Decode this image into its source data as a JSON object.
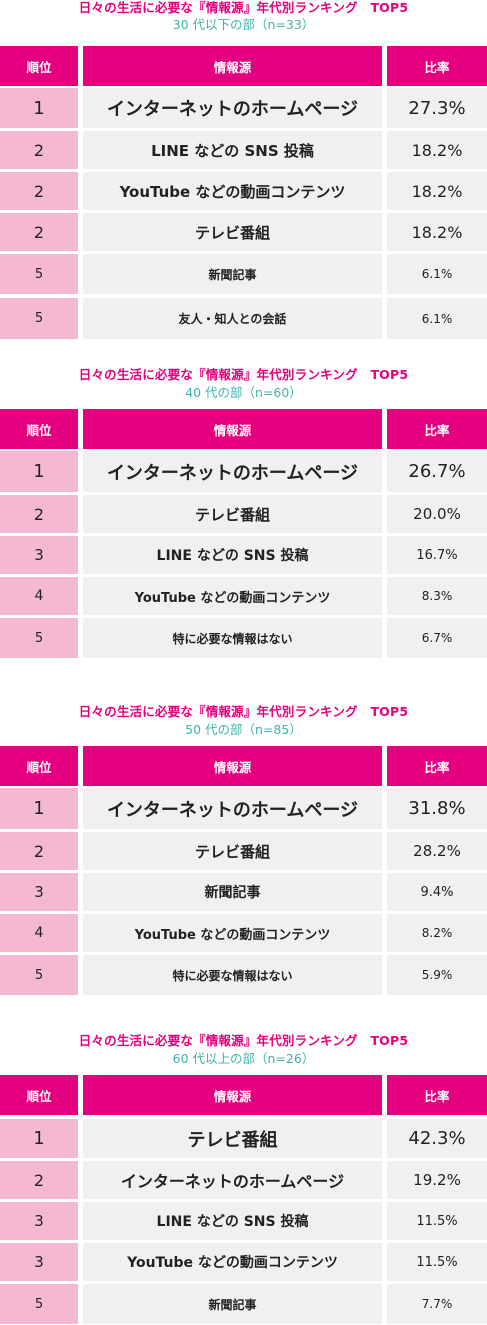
{
  "header_labels": {
    "rank": "順位",
    "source": "情報源",
    "rate": "比率"
  },
  "tables": [
    {
      "title": "日々の生活に必要な『情報源』年代別ランキング　TOP5",
      "subtitle": "30 代以下の部（n=33）",
      "rows": [
        {
          "rank": "1",
          "source": "インターネットのホームページ",
          "rate": "27.3%"
        },
        {
          "rank": "2",
          "source": "LINE などの SNS 投稿",
          "rate": "18.2%"
        },
        {
          "rank": "2",
          "source": "YouTube などの動画コンテンツ",
          "rate": "18.2%"
        },
        {
          "rank": "2",
          "source": "テレビ番組",
          "rate": "18.2%"
        },
        {
          "rank": "5",
          "source": "新聞記事",
          "rate": "6.1%"
        },
        {
          "rank": "5",
          "source": "友人・知人との会話",
          "rate": "6.1%"
        }
      ]
    },
    {
      "title": "日々の生活に必要な『情報源』年代別ランキング　TOP5",
      "subtitle": "40 代の部（n=60）",
      "rows": [
        {
          "rank": "1",
          "source": "インターネットのホームページ",
          "rate": "26.7%"
        },
        {
          "rank": "2",
          "source": "テレビ番組",
          "rate": "20.0%"
        },
        {
          "rank": "3",
          "source": "LINE などの SNS 投稿",
          "rate": "16.7%"
        },
        {
          "rank": "4",
          "source": "YouTube などの動画コンテンツ",
          "rate": "8.3%"
        },
        {
          "rank": "5",
          "source": "特に必要な情報はない",
          "rate": "6.7%"
        }
      ]
    },
    {
      "title": "日々の生活に必要な『情報源』年代別ランキング　TOP5",
      "subtitle": "50 代の部（n=85）",
      "rows": [
        {
          "rank": "1",
          "source": "インターネットのホームページ",
          "rate": "31.8%"
        },
        {
          "rank": "2",
          "source": "テレビ番組",
          "rate": "28.2%"
        },
        {
          "rank": "3",
          "source": "新聞記事",
          "rate": "9.4%"
        },
        {
          "rank": "4",
          "source": "YouTube などの動画コンテンツ",
          "rate": "8.2%"
        },
        {
          "rank": "5",
          "source": "特に必要な情報はない",
          "rate": "5.9%"
        }
      ]
    },
    {
      "title": "日々の生活に必要な『情報源』年代別ランキング　TOP5",
      "subtitle": "60 代以上の部（n=26）",
      "rows": [
        {
          "rank": "1",
          "source": "テレビ番組",
          "rate": "42.3%"
        },
        {
          "rank": "2",
          "source": "インターネットのホームページ",
          "rate": "19.2%"
        },
        {
          "rank": "3",
          "source": "LINE などの SNS 投稿",
          "rate": "11.5%"
        },
        {
          "rank": "3",
          "source": "YouTube などの動画コンテンツ",
          "rate": "11.5%"
        },
        {
          "rank": "5",
          "source": "新聞記事",
          "rate": "7.7%"
        }
      ]
    }
  ],
  "colors": {
    "accent": "#e4007f",
    "rank_bg": "#f5b8d2",
    "cell_bg": "#f0f0f0",
    "subtitle": "#3fb3ad"
  }
}
